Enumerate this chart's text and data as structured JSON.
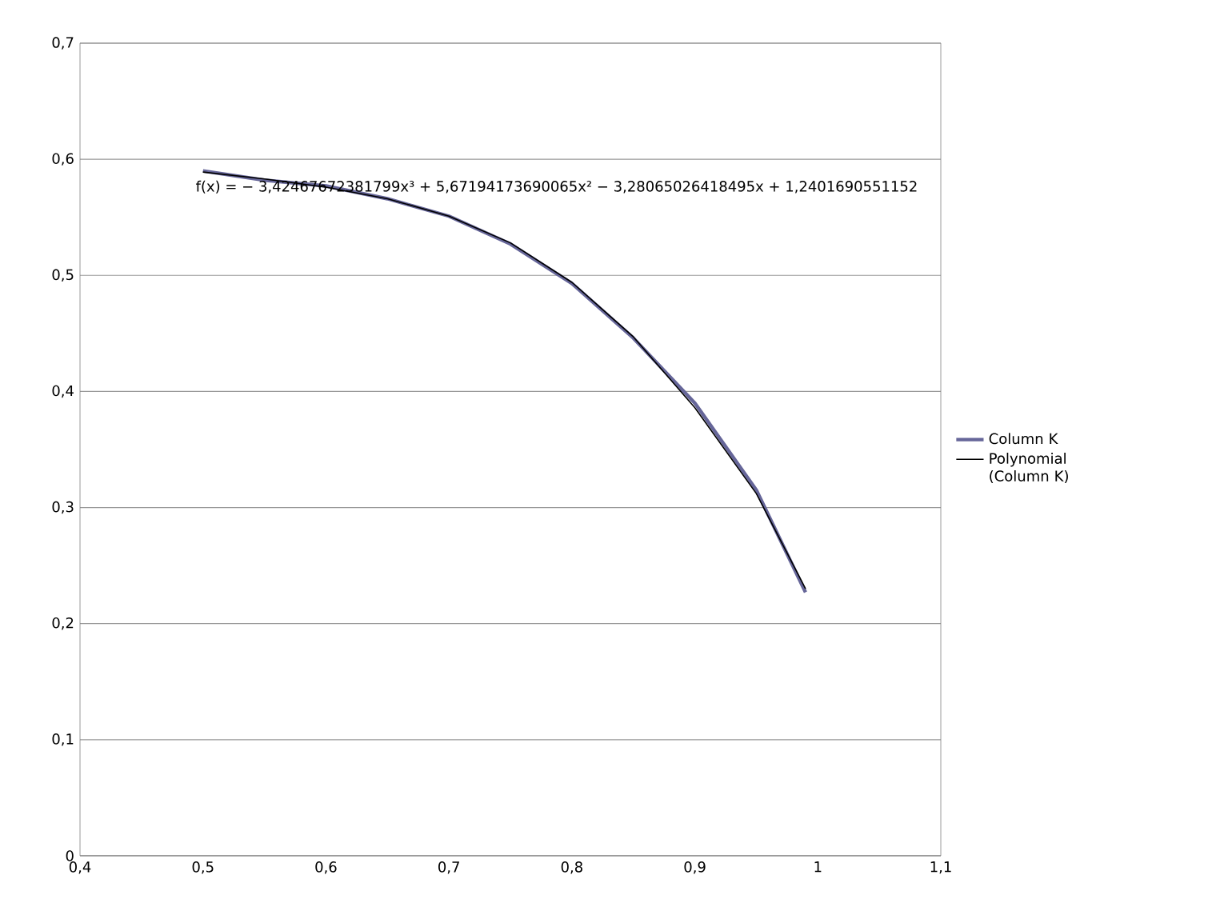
{
  "chart_data": {
    "type": "line",
    "x": [
      0.5,
      0.55,
      0.6,
      0.65,
      0.7,
      0.75,
      0.8,
      0.85,
      0.9,
      0.95,
      0.99
    ],
    "series": [
      {
        "name": "Column K",
        "color": "#666699",
        "values": [
          0.59,
          0.582,
          0.577,
          0.566,
          0.551,
          0.527,
          0.493,
          0.446,
          0.39,
          0.315,
          0.227
        ]
      },
      {
        "name": "Polynomial (Column K)",
        "color": "#000000",
        "values": [
          0.589,
          0.583,
          0.576,
          0.566,
          0.551,
          0.528,
          0.494,
          0.447,
          0.386,
          0.312,
          0.23
        ]
      }
    ],
    "annotations": [
      "f(x) = − 3,42467672381799x³ + 5,67194173690065x² − 3,28065026418495x + 1,2401690551152"
    ],
    "xlim": [
      0.4,
      1.1
    ],
    "xticks": [
      {
        "value": 0.4,
        "label": "0,4"
      },
      {
        "value": 0.5,
        "label": "0,5"
      },
      {
        "value": 0.6,
        "label": "0,6"
      },
      {
        "value": 0.7,
        "label": "0,7"
      },
      {
        "value": 0.8,
        "label": "0,8"
      },
      {
        "value": 0.9,
        "label": "0,9"
      },
      {
        "value": 1.0,
        "label": "1"
      },
      {
        "value": 1.1,
        "label": "1,1"
      }
    ],
    "ylim": [
      0,
      0.7
    ],
    "yticks": [
      {
        "value": 0,
        "label": "0"
      },
      {
        "value": 0.1,
        "label": "0,1"
      },
      {
        "value": 0.2,
        "label": "0,2"
      },
      {
        "value": 0.3,
        "label": "0,3"
      },
      {
        "value": 0.4,
        "label": "0,4"
      },
      {
        "value": 0.5,
        "label": "0,5"
      },
      {
        "value": 0.6,
        "label": "0,6"
      },
      {
        "value": 0.7,
        "label": "0,7"
      }
    ],
    "grid": "y",
    "legend": "right",
    "line_style": "solid",
    "marker": "none"
  }
}
